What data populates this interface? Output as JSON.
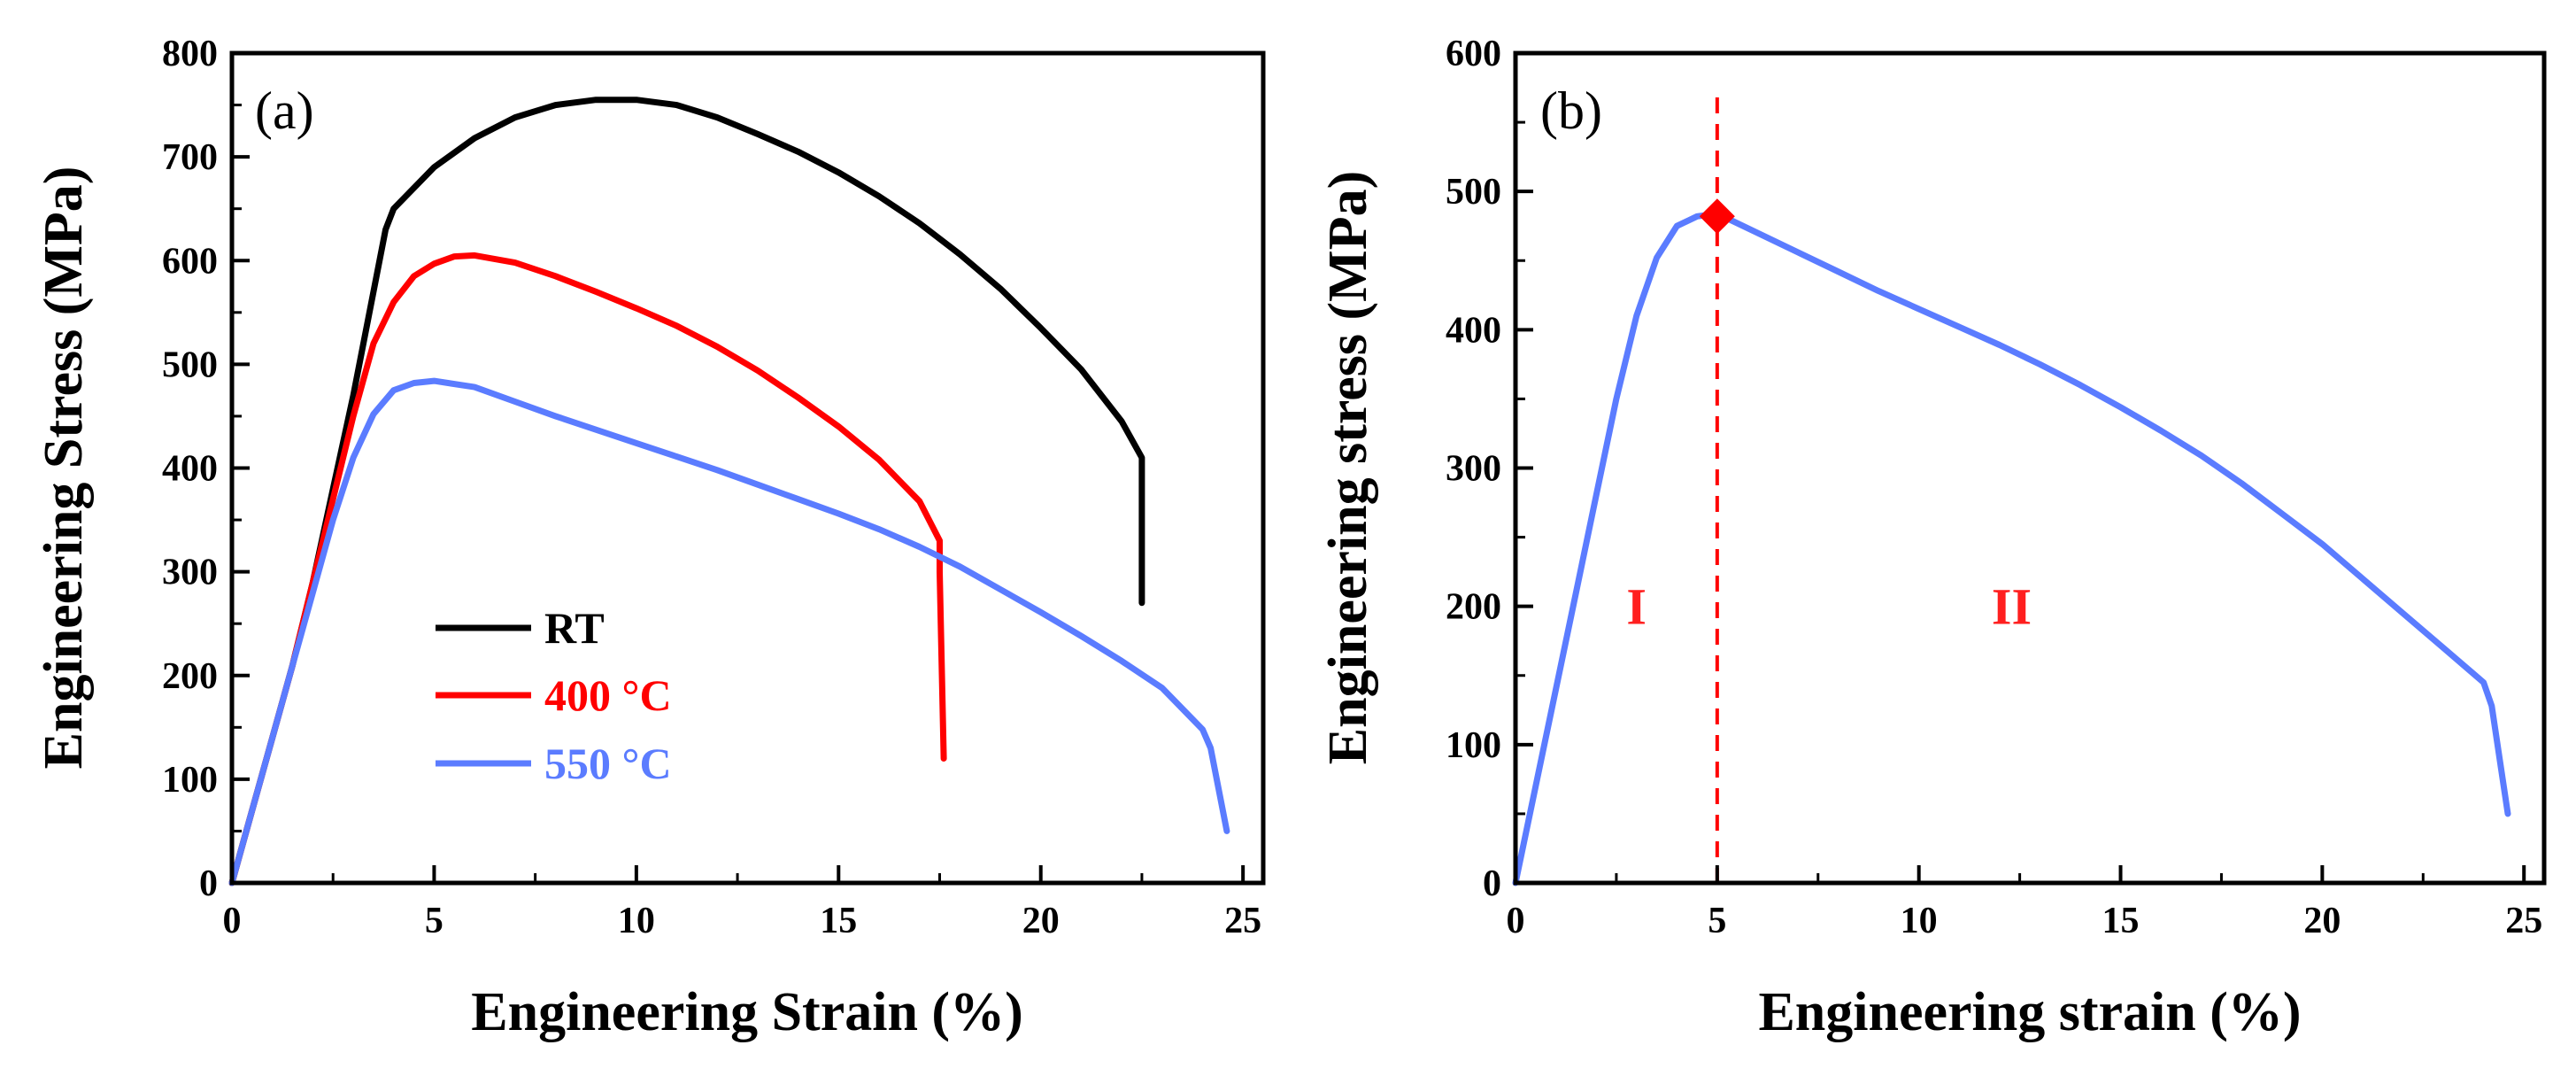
{
  "colors": {
    "rt": "#000000",
    "t400": "#ff0000",
    "t550": "#5b7cff",
    "marker": "#ff0000"
  },
  "chart_data": [
    {
      "type": "line",
      "panel_label": "(a)",
      "xlabel": "Engineering Strain (%)",
      "ylabel": "Engineering Stress (MPa)",
      "xlim": [
        0,
        25.5
      ],
      "ylim": [
        0,
        800
      ],
      "xticks": [
        0,
        5,
        10,
        15,
        20,
        25
      ],
      "yticks": [
        0,
        100,
        200,
        300,
        400,
        500,
        600,
        700,
        800
      ],
      "legend": [
        "RT",
        "400 °C",
        "550 °C"
      ],
      "series": [
        {
          "name": "RT",
          "color": "#000000",
          "points": [
            [
              0,
              0
            ],
            [
              0.5,
              70
            ],
            [
              1,
              140
            ],
            [
              1.5,
              210
            ],
            [
              2,
              290
            ],
            [
              2.5,
              380
            ],
            [
              3,
              470
            ],
            [
              3.5,
              570
            ],
            [
              3.8,
              630
            ],
            [
              4,
              650
            ],
            [
              5,
              690
            ],
            [
              6,
              718
            ],
            [
              7,
              738
            ],
            [
              8,
              750
            ],
            [
              9,
              755
            ],
            [
              10,
              755
            ],
            [
              11,
              750
            ],
            [
              12,
              738
            ],
            [
              13,
              722
            ],
            [
              14,
              705
            ],
            [
              15,
              685
            ],
            [
              16,
              662
            ],
            [
              17,
              636
            ],
            [
              18,
              606
            ],
            [
              19,
              573
            ],
            [
              20,
              535
            ],
            [
              21,
              495
            ],
            [
              22,
              445
            ],
            [
              22.5,
              410
            ],
            [
              22.5,
              270
            ]
          ]
        },
        {
          "name": "400 °C",
          "color": "#ff0000",
          "points": [
            [
              0,
              0
            ],
            [
              0.5,
              70
            ],
            [
              1,
              140
            ],
            [
              1.5,
              210
            ],
            [
              2,
              290
            ],
            [
              2.5,
              370
            ],
            [
              3,
              450
            ],
            [
              3.5,
              520
            ],
            [
              4,
              560
            ],
            [
              4.5,
              585
            ],
            [
              5,
              597
            ],
            [
              5.5,
              604
            ],
            [
              6,
              605
            ],
            [
              7,
              598
            ],
            [
              8,
              585
            ],
            [
              9,
              570
            ],
            [
              10,
              554
            ],
            [
              11,
              537
            ],
            [
              12,
              517
            ],
            [
              13,
              494
            ],
            [
              14,
              468
            ],
            [
              15,
              440
            ],
            [
              16,
              408
            ],
            [
              17,
              368
            ],
            [
              17.5,
              330
            ],
            [
              17.5,
              300
            ],
            [
              17.6,
              120
            ]
          ]
        },
        {
          "name": "550 °C",
          "color": "#5b7cff",
          "points": [
            [
              0,
              0
            ],
            [
              0.5,
              70
            ],
            [
              1,
              140
            ],
            [
              1.5,
              210
            ],
            [
              2,
              280
            ],
            [
              2.5,
              350
            ],
            [
              3,
              410
            ],
            [
              3.5,
              452
            ],
            [
              4,
              475
            ],
            [
              4.5,
              482
            ],
            [
              5,
              484
            ],
            [
              6,
              478
            ],
            [
              7,
              464
            ],
            [
              8,
              450
            ],
            [
              9,
              437
            ],
            [
              10,
              424
            ],
            [
              11,
              411
            ],
            [
              12,
              398
            ],
            [
              13,
              384
            ],
            [
              14,
              370
            ],
            [
              15,
              356
            ],
            [
              16,
              341
            ],
            [
              17,
              324
            ],
            [
              18,
              305
            ],
            [
              19,
              283
            ],
            [
              20,
              261
            ],
            [
              21,
              238
            ],
            [
              22,
              214
            ],
            [
              23,
              188
            ],
            [
              24,
              148
            ],
            [
              24.2,
              130
            ],
            [
              24.6,
              50
            ]
          ]
        }
      ]
    },
    {
      "type": "line",
      "panel_label": "(b)",
      "xlabel": "Engineering strain (%)",
      "ylabel": "Engineering stress (MPa)",
      "xlim": [
        0,
        25.5
      ],
      "ylim": [
        0,
        600
      ],
      "xticks": [
        0,
        5,
        10,
        15,
        20,
        25
      ],
      "yticks": [
        0,
        100,
        200,
        300,
        400,
        500,
        600
      ],
      "vline_x": 5,
      "marker": {
        "x": 5,
        "y": 482,
        "shape": "diamond"
      },
      "regions": [
        {
          "label": "I",
          "x": 3,
          "y": 200
        },
        {
          "label": "II",
          "x": 12.3,
          "y": 200
        }
      ],
      "series": [
        {
          "name": "550 °C",
          "color": "#5b7cff",
          "points": [
            [
              0,
              0
            ],
            [
              0.5,
              70
            ],
            [
              1,
              140
            ],
            [
              1.5,
              210
            ],
            [
              2,
              280
            ],
            [
              2.5,
              350
            ],
            [
              3,
              410
            ],
            [
              3.5,
              452
            ],
            [
              4,
              475
            ],
            [
              4.5,
              482
            ],
            [
              5,
              484
            ],
            [
              6,
              470
            ],
            [
              7,
              456
            ],
            [
              8,
              442
            ],
            [
              9,
              428
            ],
            [
              10,
              415
            ],
            [
              11,
              402
            ],
            [
              12,
              389
            ],
            [
              13,
              375
            ],
            [
              14,
              360
            ],
            [
              15,
              344
            ],
            [
              16,
              327
            ],
            [
              17,
              309
            ],
            [
              18,
              289
            ],
            [
              19,
              267
            ],
            [
              20,
              245
            ],
            [
              21,
              220
            ],
            [
              22,
              195
            ],
            [
              23,
              170
            ],
            [
              24,
              145
            ],
            [
              24.2,
              128
            ],
            [
              24.6,
              50
            ]
          ]
        }
      ]
    }
  ]
}
